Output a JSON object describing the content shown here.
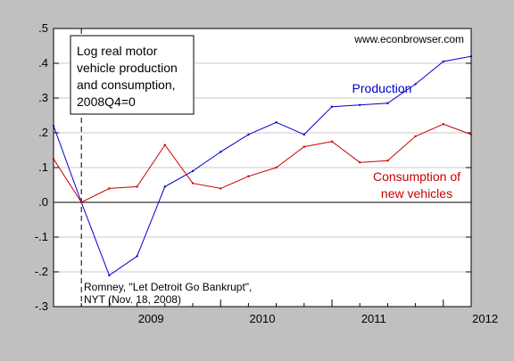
{
  "chart_data": {
    "type": "line",
    "x": [
      "2008Q3",
      "2008Q4",
      "2009Q1",
      "2009Q2",
      "2009Q3",
      "2009Q4",
      "2010Q1",
      "2010Q2",
      "2010Q3",
      "2010Q4",
      "2011Q1",
      "2011Q2",
      "2011Q3",
      "2011Q4",
      "2012Q1",
      "2012Q2"
    ],
    "series": [
      {
        "name": "Production",
        "color": "#0000cc",
        "values": [
          0.22,
          0.0,
          -0.21,
          -0.155,
          0.045,
          0.09,
          0.145,
          0.195,
          0.23,
          0.195,
          0.275,
          0.28,
          0.285,
          0.34,
          0.405,
          0.42
        ]
      },
      {
        "name": "Consumption of new vehicles",
        "color": "#cc0000",
        "values": [
          0.125,
          0.0,
          0.04,
          0.045,
          0.165,
          0.055,
          0.04,
          0.075,
          0.1,
          0.16,
          0.175,
          0.115,
          0.12,
          0.19,
          0.225,
          0.195
        ]
      }
    ],
    "series_labels": [
      {
        "lines": [
          "Production"
        ],
        "color": "#0000cc"
      },
      {
        "lines": [
          "Consumption of",
          "new vehicles"
        ],
        "color": "#cc0000"
      }
    ],
    "legend_box": {
      "lines": [
        "Log real motor",
        "vehicle production",
        "and consumption,",
        "2008Q4=0"
      ]
    },
    "watermark": "www.econbrowser.com",
    "annotation": {
      "lines": [
        "Romney, \"Let Detroit Go Bankrupt\",",
        "NYT (Nov. 18, 2008)"
      ],
      "at": "2008Q4"
    },
    "xlabel": "",
    "ylabel": "",
    "ylim": [
      -0.3,
      0.5
    ],
    "yticks": [
      -0.3,
      -0.2,
      -0.1,
      0.0,
      0.1,
      0.2,
      0.3,
      0.4,
      0.5
    ],
    "ytick_labels": [
      "-.3",
      "-.2",
      "-.1",
      ".0",
      ".1",
      ".2",
      ".3",
      ".4",
      ".5"
    ],
    "xtick_labels": [
      "2009",
      "2010",
      "2011",
      "2012"
    ],
    "zero_line": true,
    "grid": "horizontal"
  }
}
